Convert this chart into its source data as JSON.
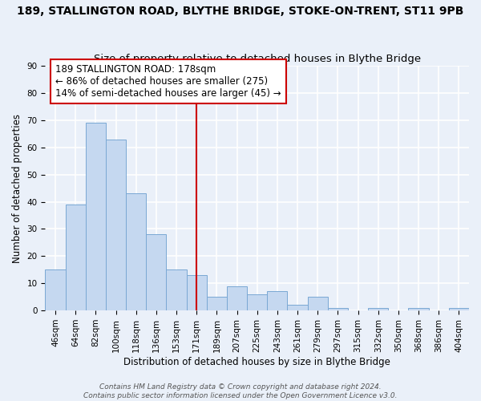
{
  "title": "189, STALLINGTON ROAD, BLYTHE BRIDGE, STOKE-ON-TRENT, ST11 9PB",
  "subtitle": "Size of property relative to detached houses in Blythe Bridge",
  "xlabel": "Distribution of detached houses by size in Blythe Bridge",
  "ylabel": "Number of detached properties",
  "bar_labels": [
    "46sqm",
    "64sqm",
    "82sqm",
    "100sqm",
    "118sqm",
    "136sqm",
    "153sqm",
    "171sqm",
    "189sqm",
    "207sqm",
    "225sqm",
    "243sqm",
    "261sqm",
    "279sqm",
    "297sqm",
    "315sqm",
    "332sqm",
    "350sqm",
    "368sqm",
    "386sqm",
    "404sqm"
  ],
  "bar_values": [
    15,
    39,
    69,
    63,
    43,
    28,
    15,
    13,
    5,
    9,
    6,
    7,
    2,
    5,
    1,
    0,
    1,
    0,
    1,
    0,
    1
  ],
  "bar_color": "#c5d8f0",
  "bar_edge_color": "#7aa8d4",
  "vline_x_index": 7.5,
  "vline_color": "#cc0000",
  "annotation_text": "189 STALLINGTON ROAD: 178sqm\n← 86% of detached houses are smaller (275)\n14% of semi-detached houses are larger (45) →",
  "annotation_box_edgecolor": "#cc0000",
  "annotation_text_color": "#000000",
  "ylim": [
    0,
    90
  ],
  "yticks": [
    0,
    10,
    20,
    30,
    40,
    50,
    60,
    70,
    80,
    90
  ],
  "bg_color": "#eaf0f9",
  "grid_color": "#ffffff",
  "footer_line1": "Contains HM Land Registry data © Crown copyright and database right 2024.",
  "footer_line2": "Contains public sector information licensed under the Open Government Licence v3.0.",
  "title_fontsize": 10,
  "subtitle_fontsize": 9.5,
  "axis_label_fontsize": 8.5,
  "tick_fontsize": 7.5,
  "annotation_fontsize": 8.5,
  "footer_fontsize": 6.5
}
